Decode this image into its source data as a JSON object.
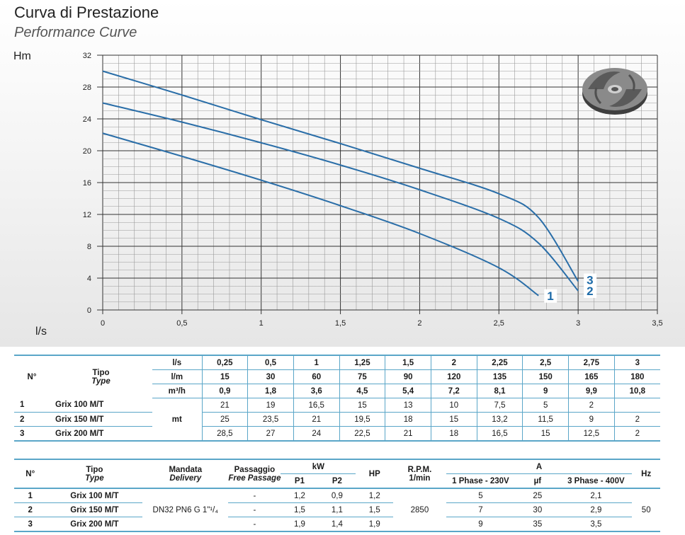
{
  "header": {
    "title": "Curva di Prestazione",
    "subtitle": "Performance Curve"
  },
  "chart_data": {
    "type": "line",
    "ylabel": "Hm",
    "xlabel": "l/s",
    "xlim": [
      0,
      3.5
    ],
    "ylim": [
      0,
      32
    ],
    "x_ticks": [
      "0",
      "0,5",
      "1",
      "1,5",
      "2",
      "2,5",
      "3",
      "3,5"
    ],
    "y_ticks": [
      "0",
      "4",
      "8",
      "12",
      "16",
      "20",
      "24",
      "28",
      "32"
    ],
    "grid": true,
    "series": [
      {
        "name": "1",
        "points": [
          [
            0,
            22.2
          ],
          [
            0.5,
            19.3
          ],
          [
            1,
            16.3
          ],
          [
            1.5,
            13.1
          ],
          [
            2,
            9.6
          ],
          [
            2.5,
            5.3
          ],
          [
            2.75,
            1.8
          ]
        ]
      },
      {
        "name": "2",
        "points": [
          [
            0,
            26
          ],
          [
            0.5,
            23.6
          ],
          [
            1,
            21
          ],
          [
            1.5,
            18.2
          ],
          [
            2,
            15.1
          ],
          [
            2.5,
            11.5
          ],
          [
            2.75,
            8.4
          ],
          [
            3,
            2.4
          ]
        ]
      },
      {
        "name": "3",
        "points": [
          [
            0,
            30
          ],
          [
            0.5,
            27
          ],
          [
            1,
            23.9
          ],
          [
            1.5,
            20.9
          ],
          [
            2,
            17.8
          ],
          [
            2.5,
            14.6
          ],
          [
            2.75,
            11.6
          ],
          [
            3,
            3.6
          ]
        ]
      }
    ]
  },
  "table1": {
    "col_no": "N°",
    "col_tipo": "Tipo",
    "col_type": "Type",
    "unit_ls": "l/s",
    "unit_lm": "l/m",
    "unit_m3h": "m³/h",
    "unit_mt": "mt",
    "ls": [
      "0,25",
      "0,5",
      "1",
      "1,25",
      "1,5",
      "2",
      "2,25",
      "2,5",
      "2,75",
      "3"
    ],
    "lm": [
      "15",
      "30",
      "60",
      "75",
      "90",
      "120",
      "135",
      "150",
      "165",
      "180"
    ],
    "m3h": [
      "0,9",
      "1,8",
      "3,6",
      "4,5",
      "5,4",
      "7,2",
      "8,1",
      "9",
      "9,9",
      "10,8"
    ],
    "rows": [
      {
        "n": "1",
        "name": "Grix 100 M/T",
        "values": [
          "21",
          "19",
          "16,5",
          "15",
          "13",
          "10",
          "7,5",
          "5",
          "2",
          ""
        ]
      },
      {
        "n": "2",
        "name": "Grix 150 M/T",
        "values": [
          "25",
          "23,5",
          "21",
          "19,5",
          "18",
          "15",
          "13,2",
          "11,5",
          "9",
          "2"
        ]
      },
      {
        "n": "3",
        "name": "Grix 200 M/T",
        "values": [
          "28,5",
          "27",
          "24",
          "22,5",
          "21",
          "18",
          "16,5",
          "15",
          "12,5",
          "2"
        ]
      }
    ]
  },
  "table2": {
    "col_no": "N°",
    "col_tipo": "Tipo",
    "col_type": "Type",
    "col_mandata": "Mandata",
    "col_delivery": "Delivery",
    "col_passaggio": "Passaggio",
    "col_free": "Free Passage",
    "col_kw": "kW",
    "col_p1": "P1",
    "col_p2": "P2",
    "col_hp": "HP",
    "col_rpm": "R.P.M.",
    "col_rpm_unit": "1/min",
    "col_a": "A",
    "col_1phase": "1 Phase - 230V",
    "col_uf": "µf",
    "col_3phase": "3 Phase - 400V",
    "col_hz": "Hz",
    "delivery_value": "DN32 PN6 G 1\"¹/₄",
    "rpm_value": "2850",
    "hz_value": "50",
    "rows": [
      {
        "n": "1",
        "name": "Grix 100 M/T",
        "passage": "-",
        "p1": "1,2",
        "p2": "0,9",
        "hp": "1,2",
        "a1": "5",
        "uf": "25",
        "a3": "2,1"
      },
      {
        "n": "2",
        "name": "Grix 150 M/T",
        "passage": "-",
        "p1": "1,5",
        "p2": "1,1",
        "hp": "1,5",
        "a1": "7",
        "uf": "30",
        "a3": "2,9"
      },
      {
        "n": "3",
        "name": "Grix 200 M/T",
        "passage": "-",
        "p1": "1,9",
        "p2": "1,4",
        "hp": "1,9",
        "a1": "9",
        "uf": "35",
        "a3": "3,5"
      }
    ]
  }
}
